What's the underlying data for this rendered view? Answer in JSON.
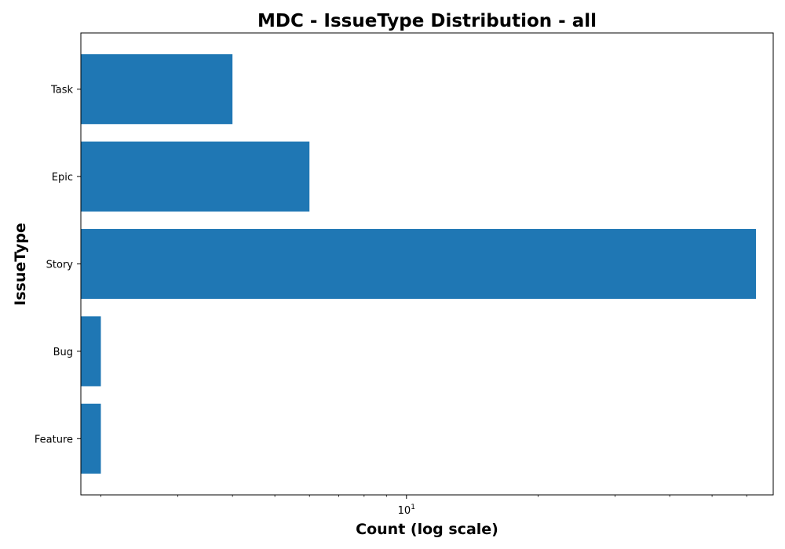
{
  "chart_data": {
    "type": "bar",
    "orientation": "horizontal",
    "title": "MDC - IssueType Distribution - all",
    "xlabel": "Count (log scale)",
    "ylabel": "IssueType",
    "x_scale": "log",
    "xlim": [
      1.8,
      69
    ],
    "categories": [
      "Feature",
      "Bug",
      "Story",
      "Epic",
      "Task"
    ],
    "values": [
      2,
      2,
      63,
      6,
      4
    ],
    "major_ticks": [
      {
        "value": 10,
        "base": "10",
        "exponent": "1"
      }
    ],
    "minor_ticks": [
      2,
      3,
      4,
      5,
      6,
      7,
      8,
      9,
      20,
      30,
      40,
      50,
      60
    ],
    "bar_color": "#1f77b4",
    "grid": false,
    "legend": "none"
  }
}
